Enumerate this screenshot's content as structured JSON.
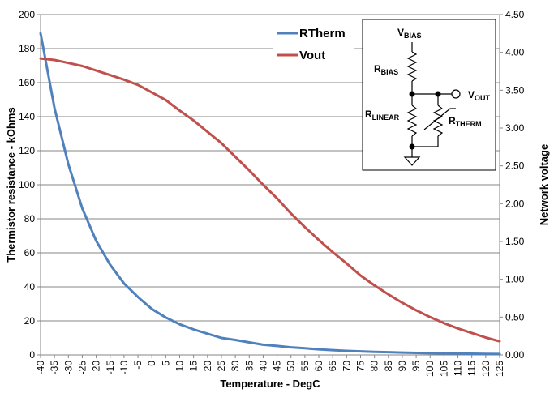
{
  "chart_data": {
    "type": "line",
    "title": "",
    "xlabel": "Temperature - DegC",
    "ylabel": "Thermistor resistance - kOhms",
    "y2label": "Network voltage",
    "x": [
      -40,
      -35,
      -30,
      -25,
      -20,
      -15,
      -10,
      -5,
      0,
      5,
      10,
      15,
      20,
      25,
      30,
      35,
      40,
      45,
      50,
      55,
      60,
      65,
      70,
      75,
      80,
      85,
      90,
      95,
      100,
      105,
      110,
      115,
      120,
      125
    ],
    "ylim": [
      0,
      200
    ],
    "y2lim": [
      0,
      4.5
    ],
    "yticks": [
      "0",
      "20",
      "40",
      "60",
      "80",
      "100",
      "120",
      "140",
      "160",
      "180",
      "200"
    ],
    "y2ticks": [
      "0.00",
      "0.50",
      "1.00",
      "1.50",
      "2.00",
      "2.50",
      "3.00",
      "3.50",
      "4.00",
      "4.50"
    ],
    "xticks": [
      "-40",
      "-35",
      "-30",
      "-25",
      "-20",
      "-15",
      "-10",
      "-5",
      "0",
      "5",
      "10",
      "15",
      "20",
      "25",
      "30",
      "35",
      "40",
      "45",
      "50",
      "55",
      "60",
      "65",
      "70",
      "75",
      "80",
      "85",
      "90",
      "95",
      "100",
      "105",
      "110",
      "115",
      "120",
      "125"
    ],
    "series": [
      {
        "name": "RTherm",
        "axis": "left",
        "color": "#4f81bd",
        "values": [
          189,
          145,
          112,
          86,
          67,
          53,
          42,
          34,
          27,
          22,
          18,
          15,
          12.5,
          10,
          8.8,
          7.4,
          6,
          5.3,
          4.5,
          3.9,
          3.3,
          2.8,
          2.4,
          2.1,
          1.8,
          1.6,
          1.4,
          1.2,
          1.0,
          0.9,
          0.8,
          0.7,
          0.6,
          0.5
        ]
      },
      {
        "name": "Vout",
        "axis": "right",
        "color": "#c0504d",
        "values": [
          3.92,
          3.9,
          3.86,
          3.82,
          3.76,
          3.7,
          3.64,
          3.57,
          3.47,
          3.37,
          3.23,
          3.1,
          2.95,
          2.8,
          2.62,
          2.44,
          2.25,
          2.07,
          1.87,
          1.69,
          1.52,
          1.36,
          1.21,
          1.05,
          0.92,
          0.8,
          0.69,
          0.59,
          0.5,
          0.42,
          0.35,
          0.29,
          0.23,
          0.18
        ]
      }
    ],
    "legend_position": "top-right",
    "grid": "horizontal"
  },
  "schematic": {
    "vbias": {
      "main": "V",
      "sub": "BIAS"
    },
    "rbias": {
      "main": "R",
      "sub": "BIAS"
    },
    "rlinear": {
      "main": "R",
      "sub": "LINEAR"
    },
    "rtherm": {
      "main": "R",
      "sub": "THERM"
    },
    "vout": {
      "main": "V",
      "sub": "OUT"
    }
  }
}
